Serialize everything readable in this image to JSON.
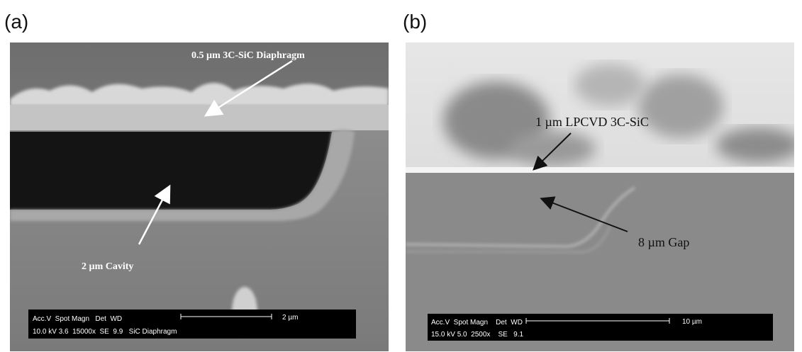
{
  "panels": [
    {
      "label": "(a)",
      "annotations": [
        "0.5 µm 3C-SiC Diaphragm",
        "2 µm Cavity"
      ],
      "info_bar": {
        "header": "Acc.V  Spot Magn   Det  WD",
        "values": "10.0 kV 3.6  15000x  SE  9.9   SiC Diaphragm",
        "scale": "2 µm"
      }
    },
    {
      "label": "(b)",
      "annotations": [
        "1 µm LPCVD 3C-SiC",
        "8 µm Gap"
      ],
      "info_bar": {
        "header": "Acc.V  Spot Magn    Det  WD",
        "values": "15.0 kV 5.0  2500x    SE   9.1",
        "scale": "10 µm"
      }
    }
  ]
}
